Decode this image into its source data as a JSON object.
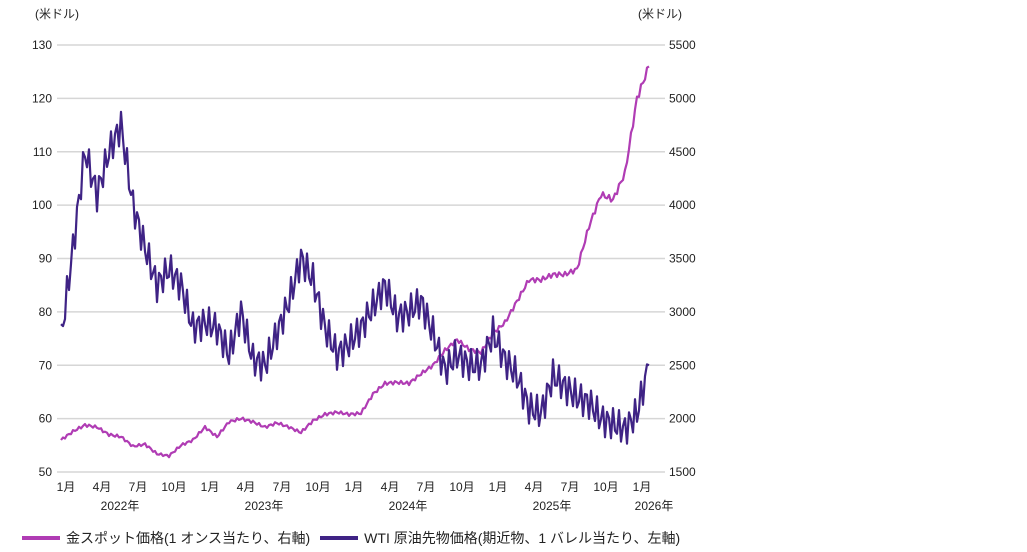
{
  "chart_data": {
    "type": "line",
    "left_unit": "(米ドル)",
    "right_unit": "(米ドル)",
    "left_ticks": [
      50,
      60,
      70,
      80,
      90,
      100,
      110,
      120,
      130
    ],
    "right_ticks": [
      1500,
      2000,
      2500,
      3000,
      3500,
      4000,
      4500,
      5000,
      5500
    ],
    "ylim_left": [
      50,
      130
    ],
    "ylim_right": [
      1500,
      5500
    ],
    "grid": true,
    "month_labels": [
      "1月",
      "4月",
      "7月",
      "10月",
      "1月",
      "4月",
      "7月",
      "10月",
      "1月",
      "4月",
      "7月",
      "10月",
      "1月",
      "4月",
      "7月",
      "10月",
      "1月"
    ],
    "year_labels": [
      {
        "label": "2022年",
        "month_index": 4.5
      },
      {
        "label": "2023年",
        "month_index": 16.5
      },
      {
        "label": "2024年",
        "month_index": 28.5
      },
      {
        "label": "2025年",
        "month_index": 40.5
      },
      {
        "label": "2026年",
        "month_index": 49
      }
    ],
    "x_start": "2022-01",
    "series": [
      {
        "name": "金スポット価格(1 オンス当たり、右軸)",
        "axis": "right",
        "color": "#b03cb4",
        "values": [
          1800,
          1880,
          1940,
          1920,
          1850,
          1830,
          1740,
          1760,
          1670,
          1650,
          1750,
          1800,
          1920,
          1830,
          1970,
          2000,
          1970,
          1920,
          1960,
          1920,
          1870,
          1980,
          2040,
          2060,
          2040,
          2050,
          2230,
          2330,
          2340,
          2330,
          2420,
          2500,
          2640,
          2740,
          2650,
          2620,
          2800,
          2900,
          3100,
          3300,
          3300,
          3350,
          3350,
          3400,
          3800,
          4100,
          4050,
          4300,
          5000,
          5300
        ]
      },
      {
        "name": "WTI 原油先物価格(期近物、1 バレル当たり、左軸)",
        "axis": "left",
        "color": "#3f2385",
        "values": [
          75,
          92,
          110,
          102,
          110,
          115,
          100,
          92,
          85,
          88,
          85,
          77,
          78,
          77,
          72,
          80,
          71,
          70,
          76,
          82,
          90,
          86,
          77,
          72,
          74,
          77,
          81,
          85,
          79,
          80,
          82,
          76,
          69,
          72,
          70,
          70,
          76,
          71,
          68,
          62,
          61,
          68,
          66,
          64,
          63,
          60,
          59,
          58,
          61,
          70
        ]
      }
    ]
  },
  "legend": {
    "gold": "金スポット価格(1 オンス当たり、右軸)",
    "wti": "WTI 原油先物価格(期近物、1 バレル当たり、左軸)"
  }
}
